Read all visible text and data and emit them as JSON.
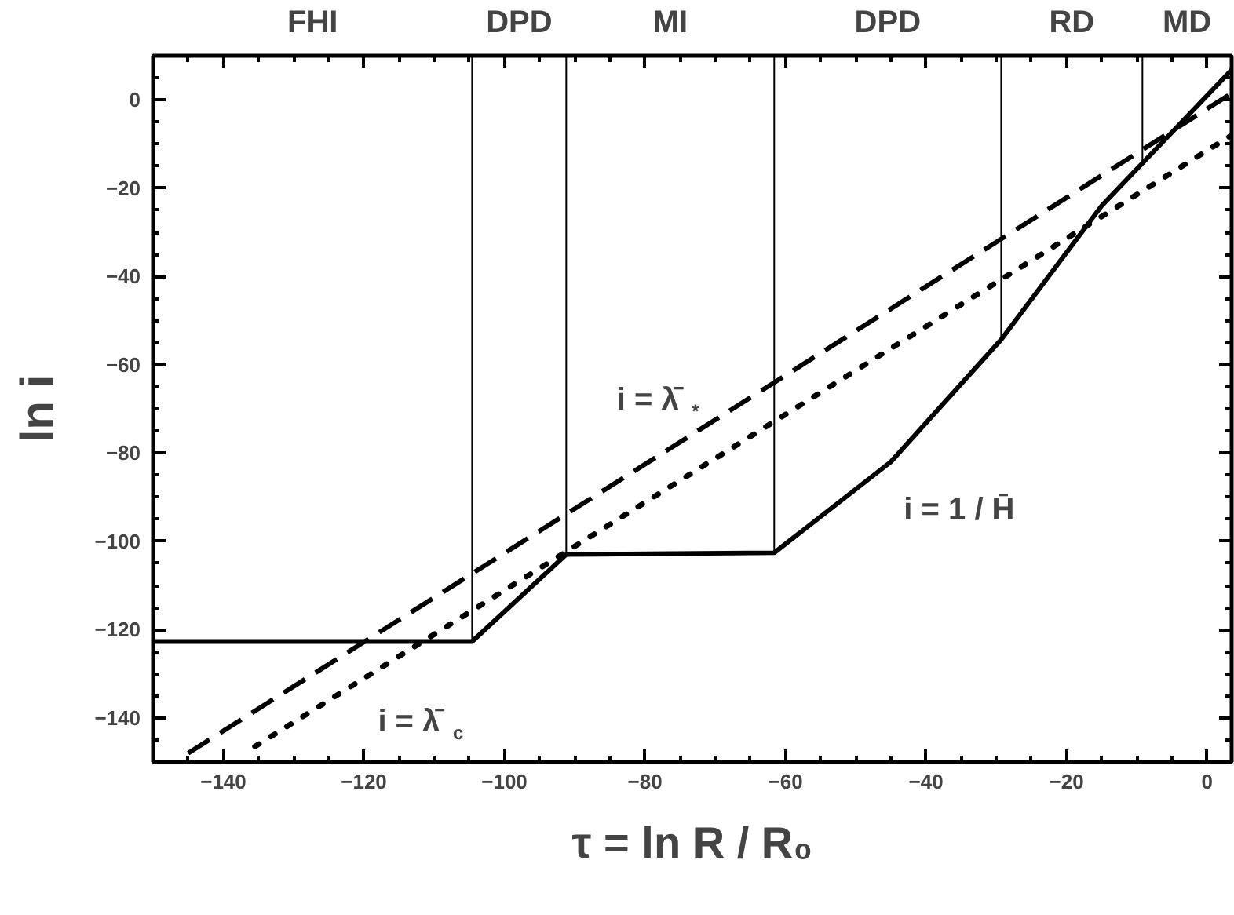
{
  "chart_data": {
    "type": "line",
    "xlabel": "τ = ln R / R₀",
    "ylabel": "ln i",
    "xlim": [
      -150,
      3.5
    ],
    "ylim": [
      -150,
      10
    ],
    "xticks": [
      -140,
      -120,
      -100,
      -80,
      -60,
      -40,
      -20,
      0
    ],
    "yticks": [
      -140,
      -120,
      -100,
      -80,
      -60,
      -40,
      -20,
      0
    ],
    "series": [
      {
        "name": "i = 1 / H̄",
        "color": "#000000",
        "line_style": "solid",
        "x": [
          -150,
          -104.6,
          -91.2,
          -61.6,
          -45,
          -29.3,
          -15,
          3.5
        ],
        "values": [
          -122.7,
          -122.7,
          -103,
          -102.6,
          -82,
          -54.3,
          -24,
          6.8
        ]
      },
      {
        "name": "i = λ̄$_{*}$",
        "color": "#000000",
        "line_style": "dashed",
        "x": [
          -145,
          3.5
        ],
        "values": [
          -148,
          1.5
        ]
      },
      {
        "name": "i = λ̄$_{c}$",
        "color": "#000000",
        "line_style": "dotted",
        "x": [
          -135.5,
          3.5
        ],
        "values": [
          -146.5,
          -8
        ]
      }
    ],
    "ref_lines": [
      {
        "axis": "x",
        "value": -104.6
      },
      {
        "axis": "x",
        "value": -91.2
      },
      {
        "axis": "x",
        "value": -61.6
      },
      {
        "axis": "x",
        "value": -29.3
      },
      {
        "axis": "x",
        "value": -9.2
      }
    ],
    "annotations": [
      "FHI",
      "DPD",
      "MI",
      "DPD",
      "RD",
      "MD"
    ]
  }
}
